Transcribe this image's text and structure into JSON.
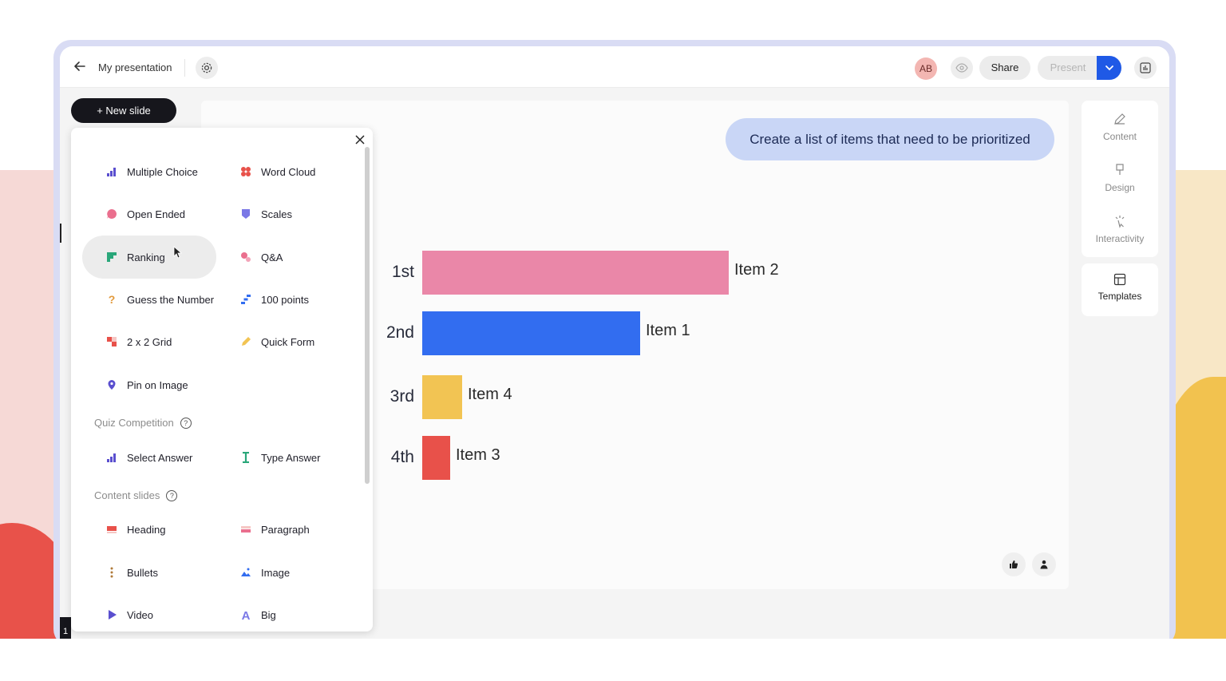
{
  "header": {
    "back_icon": "arrow-left-icon",
    "title": "My presentation",
    "avatar_initials": "AB",
    "share_label": "Share",
    "present_label": "Present"
  },
  "sidebar": {
    "new_slide_label": "+ New slide",
    "slide_number": "1"
  },
  "slide": {
    "prompt": "Create a list of items that need to be prioritized",
    "ranks": [
      "1st",
      "2nd",
      "3rd",
      "4th"
    ]
  },
  "chart_data": {
    "type": "bar",
    "orientation": "horizontal",
    "categories": [
      "1st",
      "2nd",
      "3rd",
      "4th"
    ],
    "labels": [
      "Item 2",
      "Item 1",
      "Item 4",
      "Item 3"
    ],
    "values": [
      100,
      71,
      13,
      9
    ],
    "colors": [
      "#ea87a8",
      "#326df0",
      "#f2c453",
      "#e8514a"
    ],
    "title": "",
    "xlabel": "",
    "ylabel": "",
    "grid": false
  },
  "right_panel": {
    "content_label": "Content",
    "design_label": "Design",
    "interactivity_label": "Interactivity",
    "templates_label": "Templates"
  },
  "menu": {
    "items": [
      {
        "label": "Multiple Choice",
        "icon": "bar-chart-icon",
        "color": "#5a4fcf"
      },
      {
        "label": "Word Cloud",
        "icon": "word-cloud-icon",
        "color": "#e8514a"
      },
      {
        "label": "Open Ended",
        "icon": "speech-bubble-icon",
        "color": "#ea6f8e"
      },
      {
        "label": "Scales",
        "icon": "scales-icon",
        "color": "#7a78e6"
      },
      {
        "label": "Ranking",
        "icon": "ranking-icon",
        "color": "#2aa77a"
      },
      {
        "label": "Q&A",
        "icon": "qa-icon",
        "color": "#ea6f8e"
      },
      {
        "label": "Guess the Number",
        "icon": "question-mark-icon",
        "color": "#e29a3c"
      },
      {
        "label": "100 points",
        "icon": "stairs-icon",
        "color": "#326df0"
      },
      {
        "label": "2 x 2 Grid",
        "icon": "grid-icon",
        "color": "#e8514a"
      },
      {
        "label": "Quick Form",
        "icon": "pencil-icon",
        "color": "#f2c453"
      },
      {
        "label": "Pin on Image",
        "icon": "pin-icon",
        "color": "#5a4fcf"
      }
    ],
    "quiz_title": "Quiz Competition",
    "quiz_items": [
      {
        "label": "Select Answer",
        "icon": "bar-chart-icon",
        "color": "#5a4fcf"
      },
      {
        "label": "Type Answer",
        "icon": "text-cursor-icon",
        "color": "#2aa77a"
      }
    ],
    "content_title": "Content slides",
    "content_items": [
      {
        "label": "Heading",
        "icon": "heading-icon",
        "color": "#e8514a"
      },
      {
        "label": "Paragraph",
        "icon": "paragraph-icon",
        "color": "#ea6f8e"
      },
      {
        "label": "Bullets",
        "icon": "bullets-icon",
        "color": "#b07a3a"
      },
      {
        "label": "Image",
        "icon": "image-icon",
        "color": "#326df0"
      },
      {
        "label": "Video",
        "icon": "play-icon",
        "color": "#5a4fcf"
      },
      {
        "label": "Big",
        "icon": "big-letter-icon",
        "color": "#7a78e6"
      }
    ],
    "selected": "Ranking"
  }
}
